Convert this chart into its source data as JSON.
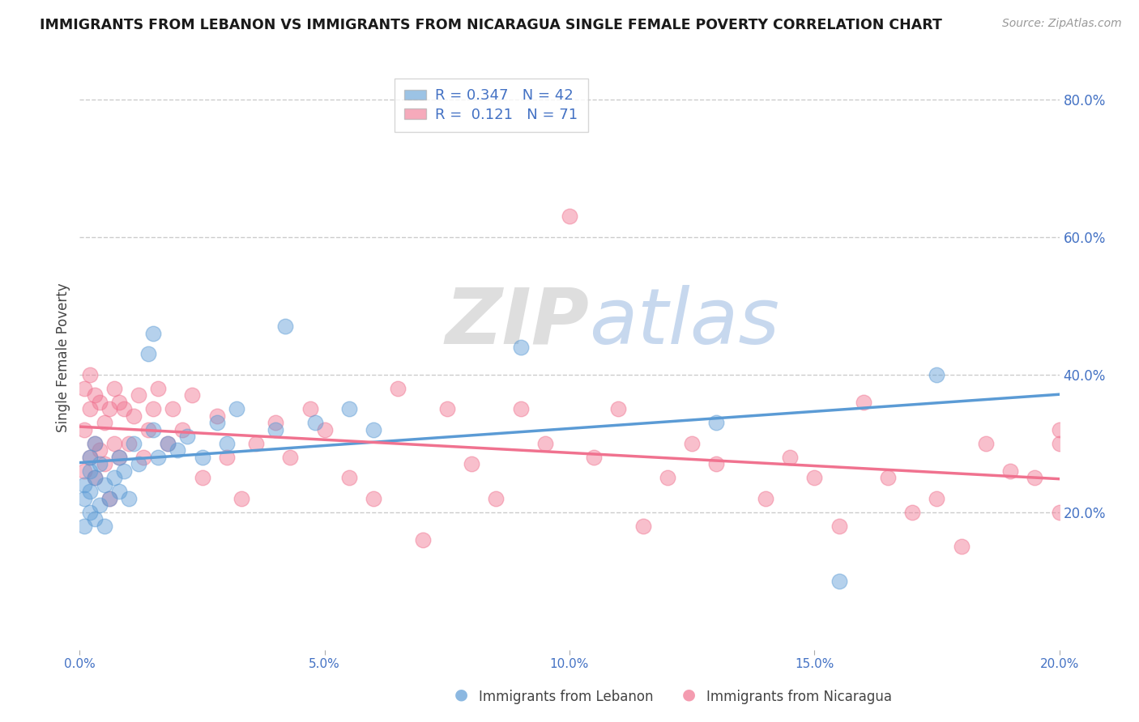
{
  "title": "IMMIGRANTS FROM LEBANON VS IMMIGRANTS FROM NICARAGUA SINGLE FEMALE POVERTY CORRELATION CHART",
  "source_text": "Source: ZipAtlas.com",
  "ylabel": "Single Female Poverty",
  "xlim": [
    0.0,
    0.2
  ],
  "ylim": [
    0.0,
    0.85
  ],
  "yticks": [
    0.2,
    0.4,
    0.6,
    0.8
  ],
  "ytick_labels": [
    "20.0%",
    "40.0%",
    "60.0%",
    "80.0%"
  ],
  "xticks": [
    0.0,
    0.05,
    0.1,
    0.15,
    0.2
  ],
  "xtick_labels": [
    "0.0%",
    "5.0%",
    "10.0%",
    "15.0%",
    "20.0%"
  ],
  "lebanon_color": "#5b9bd5",
  "nicaragua_color": "#f0728f",
  "lebanon_R": 0.347,
  "lebanon_N": 42,
  "nicaragua_R": 0.121,
  "nicaragua_N": 71,
  "background_color": "#ffffff",
  "grid_color": "#cccccc",
  "title_color": "#1a1a1a",
  "axis_label_color": "#444444",
  "tick_color": "#4472C4",
  "watermark_zip_color": "#c8c8c8",
  "watermark_atlas_color": "#a0b8d8",
  "lebanon_scatter_x": [
    0.001,
    0.001,
    0.001,
    0.002,
    0.002,
    0.002,
    0.002,
    0.003,
    0.003,
    0.003,
    0.004,
    0.004,
    0.005,
    0.005,
    0.006,
    0.007,
    0.008,
    0.008,
    0.009,
    0.01,
    0.011,
    0.012,
    0.014,
    0.015,
    0.015,
    0.016,
    0.018,
    0.02,
    0.022,
    0.025,
    0.028,
    0.03,
    0.032,
    0.04,
    0.042,
    0.048,
    0.055,
    0.06,
    0.09,
    0.13,
    0.155,
    0.175
  ],
  "lebanon_scatter_y": [
    0.22,
    0.24,
    0.18,
    0.26,
    0.2,
    0.28,
    0.23,
    0.3,
    0.25,
    0.19,
    0.27,
    0.21,
    0.24,
    0.18,
    0.22,
    0.25,
    0.28,
    0.23,
    0.26,
    0.22,
    0.3,
    0.27,
    0.43,
    0.46,
    0.32,
    0.28,
    0.3,
    0.29,
    0.31,
    0.28,
    0.33,
    0.3,
    0.35,
    0.32,
    0.47,
    0.33,
    0.35,
    0.32,
    0.44,
    0.33,
    0.1,
    0.4
  ],
  "nicaragua_scatter_x": [
    0.001,
    0.001,
    0.001,
    0.002,
    0.002,
    0.002,
    0.003,
    0.003,
    0.003,
    0.004,
    0.004,
    0.005,
    0.005,
    0.006,
    0.006,
    0.007,
    0.007,
    0.008,
    0.008,
    0.009,
    0.01,
    0.011,
    0.012,
    0.013,
    0.014,
    0.015,
    0.016,
    0.018,
    0.019,
    0.021,
    0.023,
    0.025,
    0.028,
    0.03,
    0.033,
    0.036,
    0.04,
    0.043,
    0.047,
    0.05,
    0.055,
    0.06,
    0.065,
    0.07,
    0.075,
    0.08,
    0.085,
    0.09,
    0.095,
    0.1,
    0.105,
    0.11,
    0.115,
    0.12,
    0.125,
    0.13,
    0.14,
    0.145,
    0.15,
    0.155,
    0.16,
    0.165,
    0.17,
    0.175,
    0.18,
    0.185,
    0.19,
    0.195,
    0.2,
    0.2,
    0.2
  ],
  "nicaragua_scatter_y": [
    0.38,
    0.32,
    0.26,
    0.4,
    0.35,
    0.28,
    0.37,
    0.3,
    0.25,
    0.36,
    0.29,
    0.33,
    0.27,
    0.35,
    0.22,
    0.38,
    0.3,
    0.36,
    0.28,
    0.35,
    0.3,
    0.34,
    0.37,
    0.28,
    0.32,
    0.35,
    0.38,
    0.3,
    0.35,
    0.32,
    0.37,
    0.25,
    0.34,
    0.28,
    0.22,
    0.3,
    0.33,
    0.28,
    0.35,
    0.32,
    0.25,
    0.22,
    0.38,
    0.16,
    0.35,
    0.27,
    0.22,
    0.35,
    0.3,
    0.63,
    0.28,
    0.35,
    0.18,
    0.25,
    0.3,
    0.27,
    0.22,
    0.28,
    0.25,
    0.18,
    0.36,
    0.25,
    0.2,
    0.22,
    0.15,
    0.3,
    0.26,
    0.25,
    0.3,
    0.32,
    0.2
  ]
}
